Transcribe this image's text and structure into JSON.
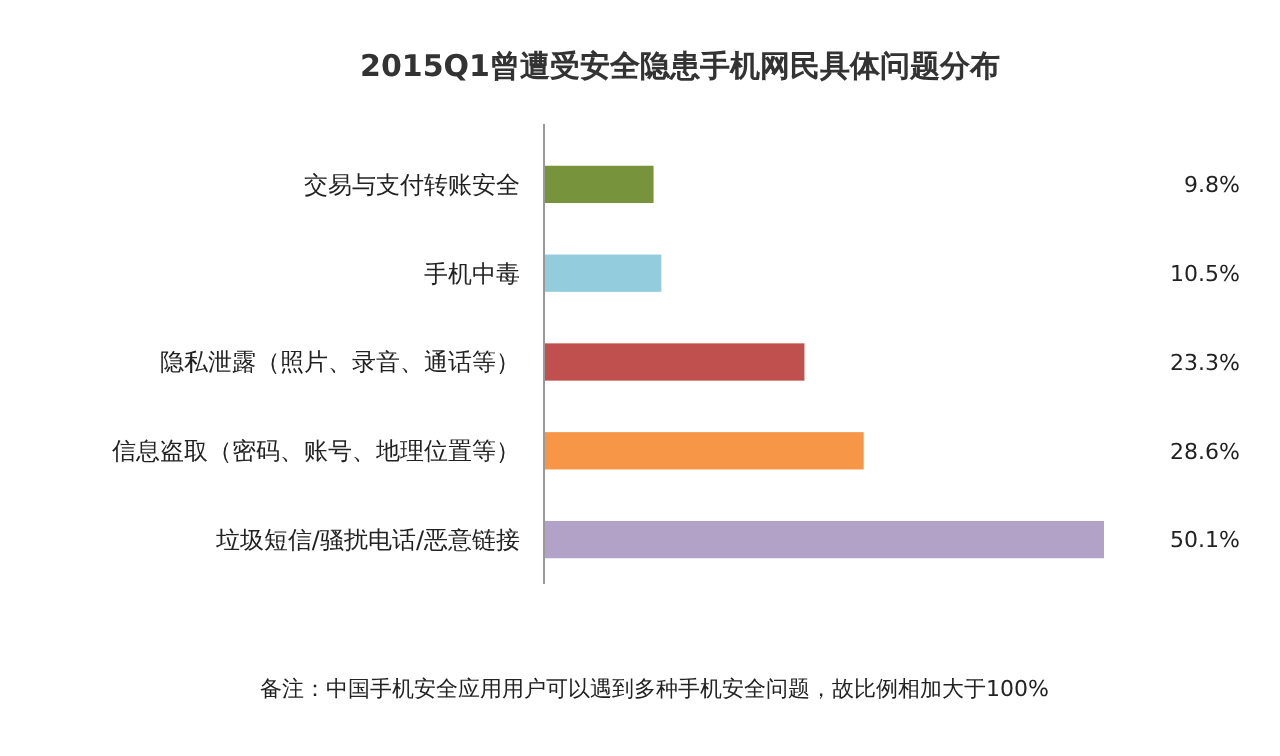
{
  "chart_data": {
    "type": "bar",
    "orientation": "horizontal",
    "title": "2015Q1曾遭受安全隐患手机网民具体问题分布",
    "categories": [
      "交易与支付转账安全",
      "手机中毒",
      "隐私泄露（照片、录音、通话等）",
      "信息盗取（密码、账号、地理位置等）",
      "垃圾短信/骚扰电话/恶意链接"
    ],
    "values": [
      9.8,
      10.5,
      23.3,
      28.6,
      50.1
    ],
    "value_labels": [
      "9.8%",
      "10.5%",
      "23.3%",
      "28.6%",
      "50.1%"
    ],
    "colors": [
      "#77933c",
      "#93cddd",
      "#c0504d",
      "#f79646",
      "#b3a2c7"
    ],
    "annotations": [
      "备注：中国手机安全应用用户可以遇到多种手机安全问题，故比例相加大于100%"
    ]
  }
}
